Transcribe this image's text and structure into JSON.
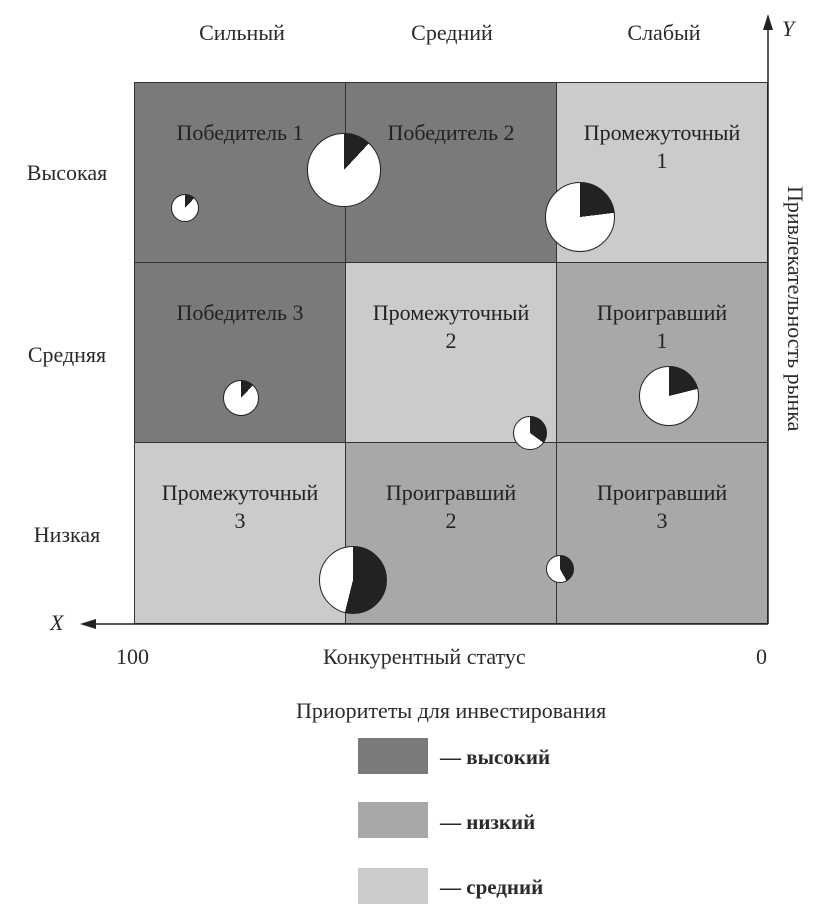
{
  "columns": [
    "Сильный",
    "Средний",
    "Слабый"
  ],
  "rows": [
    "Высокая",
    "Средняя",
    "Низкая"
  ],
  "cells": [
    {
      "label": "Победитель 1",
      "color": "#7a7a7a"
    },
    {
      "label": "Победитель 2",
      "color": "#7a7a7a"
    },
    {
      "label": "Промежуточный\n1",
      "color": "#cbcbcb"
    },
    {
      "label": "Победитель 3",
      "color": "#7a7a7a"
    },
    {
      "label": "Промежуточный\n2",
      "color": "#cbcbcb"
    },
    {
      "label": "Проигравший\n1",
      "color": "#a8a8a8"
    },
    {
      "label": "Промежуточный\n3",
      "color": "#cbcbcb"
    },
    {
      "label": "Проигравший\n2",
      "color": "#a8a8a8"
    },
    {
      "label": "Проигравший\n3",
      "color": "#a8a8a8"
    }
  ],
  "pies": [
    {
      "name": "pie-1",
      "dark_share": 0.12
    },
    {
      "name": "pie-2",
      "dark_share": 0.12
    },
    {
      "name": "pie-3",
      "dark_share": 0.23
    },
    {
      "name": "pie-4",
      "dark_share": 0.12
    },
    {
      "name": "pie-5",
      "dark_share": 0.21
    },
    {
      "name": "pie-6",
      "dark_share": 0.35
    },
    {
      "name": "pie-7",
      "dark_share": 0.54
    },
    {
      "name": "pie-8",
      "dark_share": 0.42
    }
  ],
  "axes": {
    "x_letter": "X",
    "y_letter": "Y",
    "x_title": "Конкурентный статус",
    "x_left_value": "100",
    "x_right_value": "0",
    "y_title": "Привлекательность рынка"
  },
  "legend": {
    "title": "Приоритеты для инвестирования",
    "items": [
      {
        "label": "— высокий",
        "color": "#7a7a7a"
      },
      {
        "label": "— низкий",
        "color": "#a8a8a8"
      },
      {
        "label": "— средний",
        "color": "#cbcbcb"
      }
    ]
  },
  "colors": {
    "pie_dark": "#222222",
    "pie_light": "#ffffff"
  }
}
